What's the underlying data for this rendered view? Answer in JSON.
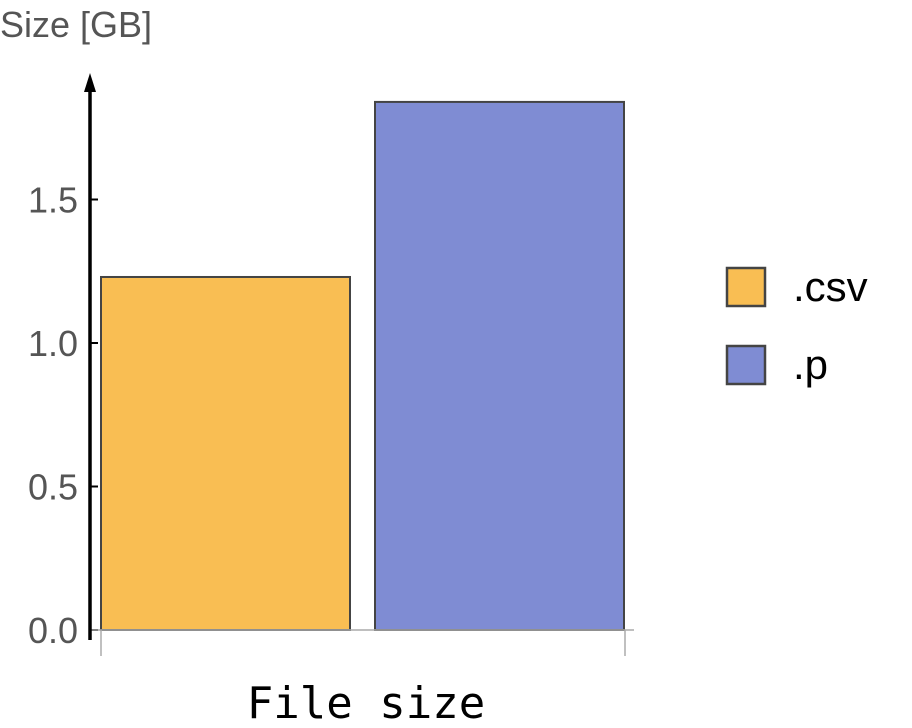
{
  "chart_data": {
    "type": "bar",
    "xlabel": "File size",
    "ylabel": "Size [GB]",
    "ylim": [
      0,
      1.85
    ],
    "yticks": [
      "0.0",
      "0.5",
      "1.0",
      "1.5"
    ],
    "ytick_values": [
      0.0,
      0.5,
      1.0,
      1.5
    ],
    "legend_placement": "right",
    "series": [
      {
        "name": ".csv",
        "value": 1.23,
        "color": "#f9be53"
      },
      {
        "name": ".p",
        "value": 1.84,
        "color": "#7f8cd3"
      }
    ]
  }
}
